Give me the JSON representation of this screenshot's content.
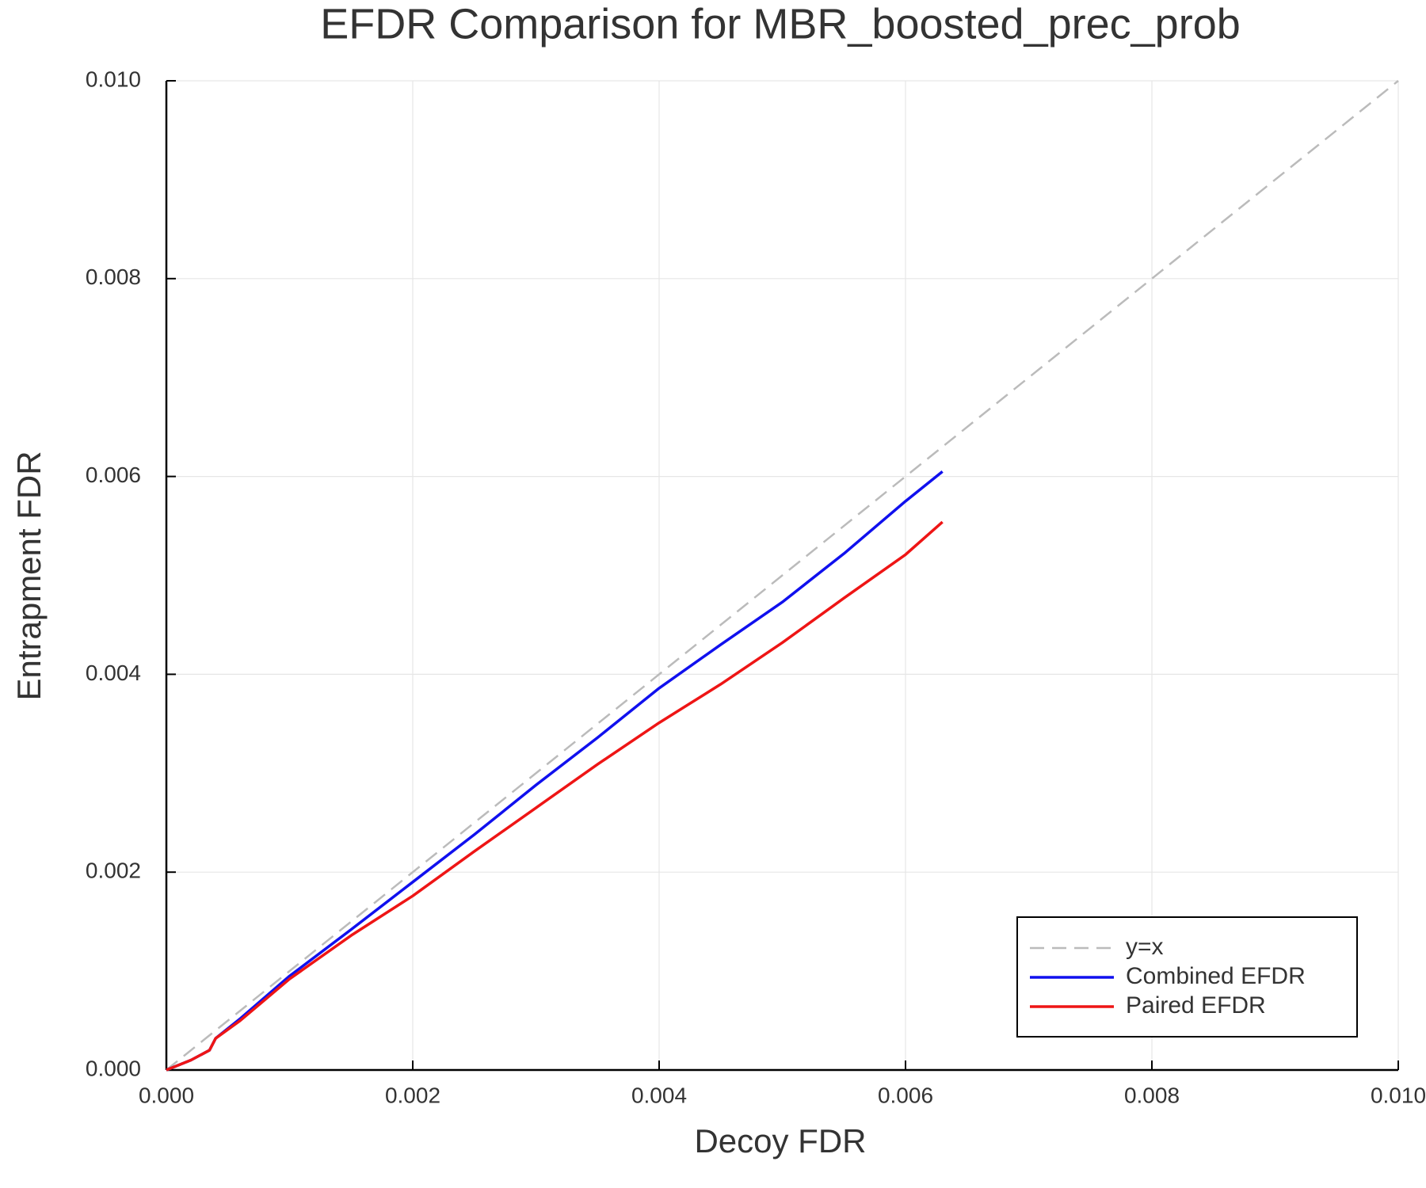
{
  "chart_data": {
    "type": "line",
    "title": "EFDR Comparison for MBR_boosted_prec_prob",
    "x_label": "Decoy FDR",
    "y_label": "Entrapment FDR",
    "xlim": [
      0,
      0.01
    ],
    "ylim": [
      0,
      0.01
    ],
    "xticks": [
      {
        "value": 0,
        "label": "0.000"
      },
      {
        "value": 0.002,
        "label": "0.002"
      },
      {
        "value": 0.004,
        "label": "0.004"
      },
      {
        "value": 0.006,
        "label": "0.006"
      },
      {
        "value": 0.008,
        "label": "0.008"
      },
      {
        "value": 0.01,
        "label": "0.010"
      }
    ],
    "yticks": [
      {
        "value": 0,
        "label": "0.000"
      },
      {
        "value": 0.002,
        "label": "0.002"
      },
      {
        "value": 0.004,
        "label": "0.004"
      },
      {
        "value": 0.006,
        "label": "0.006"
      },
      {
        "value": 0.008,
        "label": "0.008"
      },
      {
        "value": 0.01,
        "label": "0.010"
      }
    ],
    "grid": true,
    "legend": "lower right",
    "series": [
      {
        "name": "y=x",
        "color": "#bbbbbb",
        "style": "dashed",
        "x": [
          0,
          0.01
        ],
        "values": [
          0,
          0.01
        ]
      },
      {
        "name": "Combined EFDR",
        "color": "#1010ee",
        "style": "solid",
        "x": [
          0,
          0.0002,
          0.00035,
          0.0004,
          0.0006,
          0.001,
          0.0015,
          0.002,
          0.0025,
          0.003,
          0.0035,
          0.004,
          0.0045,
          0.005,
          0.0055,
          0.006,
          0.0063
        ],
        "values": [
          0,
          0.0001,
          0.0002,
          0.00032,
          0.00052,
          0.00095,
          0.00142,
          0.0019,
          0.00238,
          0.00288,
          0.00336,
          0.00386,
          0.0043,
          0.00473,
          0.00522,
          0.00575,
          0.00605
        ]
      },
      {
        "name": "Paired EFDR",
        "color": "#ee1515",
        "style": "solid",
        "x": [
          0,
          0.0002,
          0.00035,
          0.0004,
          0.0006,
          0.001,
          0.0015,
          0.002,
          0.0025,
          0.003,
          0.0035,
          0.004,
          0.0045,
          0.005,
          0.0055,
          0.006,
          0.0063
        ],
        "values": [
          0,
          0.0001,
          0.0002,
          0.00032,
          0.0005,
          0.00092,
          0.00136,
          0.00176,
          0.00221,
          0.00265,
          0.00309,
          0.00351,
          0.0039,
          0.00432,
          0.00477,
          0.00521,
          0.00554
        ]
      }
    ]
  }
}
